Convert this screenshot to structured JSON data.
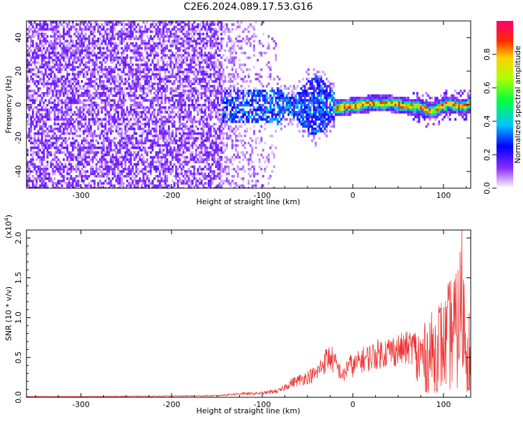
{
  "title": "C2E6.2024.089.17.53.G16",
  "chart_data": [
    {
      "type": "heatmap",
      "xlabel": "Height of straight line (km)",
      "ylabel": "Frequency (Hz)",
      "xlim": [
        -360,
        130
      ],
      "ylim": [
        -50,
        50
      ],
      "xticks": [
        -300,
        -200,
        -100,
        0,
        100
      ],
      "yticks": [
        -40,
        -20,
        0,
        20,
        40
      ],
      "colorbar": {
        "label": "Normalized spectral amplitude",
        "range": [
          0.0,
          1.0
        ],
        "ticks": [
          0.0,
          0.2,
          0.4,
          0.6,
          0.8
        ],
        "tick_labels": [
          "0.0",
          "0.2",
          "0.4",
          "0.6",
          "0.8"
        ],
        "colormap": [
          "#ffffff",
          "#7a00ff",
          "#0000ff",
          "#00c8ff",
          "#00ff00",
          "#ffff00",
          "#ff0000",
          "#ff00a0"
        ]
      },
      "description_regions": [
        {
          "x_range": [
            -360,
            -145
          ],
          "freq_range": [
            -50,
            50
          ],
          "amplitude": 0.15
        },
        {
          "x_range": [
            -145,
            -85
          ],
          "freq_range": [
            -50,
            50
          ],
          "amplitude": 0.05
        },
        {
          "x_range": [
            -145,
            -20
          ],
          "freq_range": [
            -15,
            15
          ],
          "amplitude": 0.3
        },
        {
          "x_range": [
            -20,
            130
          ],
          "freq_range": [
            -5,
            5
          ],
          "amplitude": 0.8
        }
      ]
    },
    {
      "type": "line",
      "xlabel": "Height of straight line (km)",
      "ylabel": "SNR (10 * v/v)",
      "y_multiplier": "(x10",
      "y_multiplier_exp": "4",
      "y_multiplier_close": ")",
      "xlim": [
        -360,
        130
      ],
      "ylim": [
        0,
        2.1
      ],
      "xticks": [
        -300,
        -200,
        -100,
        0,
        100
      ],
      "yticks": [
        0.0,
        0.5,
        1.0,
        1.5,
        2.0
      ],
      "ytick_labels": [
        "0.0",
        "0.5",
        "1.0",
        "1.5",
        "2.0"
      ],
      "color": "#ee3333",
      "series": [
        {
          "x": [
            -360,
            -300,
            -200,
            -150,
            -120,
            -100,
            -80,
            -70,
            -60,
            -50,
            -40,
            -35,
            -30,
            -25,
            -20,
            -15,
            -10,
            -5,
            0,
            10,
            20,
            30,
            40,
            50,
            60,
            65,
            70,
            75,
            80,
            85,
            90,
            95,
            100,
            105,
            110,
            115,
            120,
            125,
            130
          ],
          "values": [
            0.01,
            0.01,
            0.015,
            0.02,
            0.05,
            0.06,
            0.1,
            0.2,
            0.25,
            0.3,
            0.35,
            0.45,
            0.55,
            0.6,
            0.5,
            0.4,
            0.3,
            0.5,
            0.45,
            0.55,
            0.6,
            0.65,
            0.68,
            0.7,
            0.72,
            0.75,
            0.75,
            0.9,
            0.85,
            1.0,
            0.95,
            1.2,
            1.1,
            1.3,
            1.5,
            1.4,
            2.1,
            1.2,
            1.0
          ]
        }
      ]
    }
  ]
}
